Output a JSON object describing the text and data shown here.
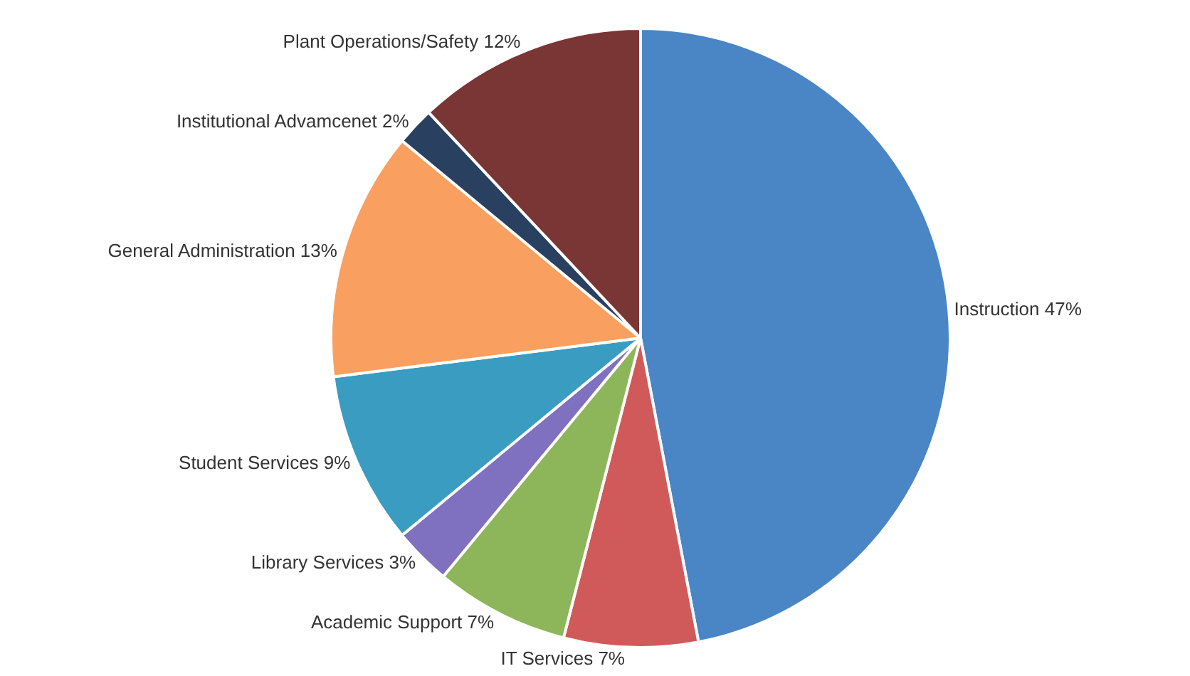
{
  "chart_data": {
    "type": "pie",
    "categories": [
      "Instruction",
      "IT Services",
      "Academic Support",
      "Library Services",
      "Student Services",
      "General Administration",
      "Institutional Advamcenet",
      "Plant Operations/Safety"
    ],
    "values": [
      47,
      7,
      7,
      3,
      9,
      13,
      2,
      12
    ],
    "value_labels": [
      "47%",
      "7%",
      "7%",
      "3%",
      "9%",
      "13%",
      "2%",
      "12%"
    ],
    "colors": [
      "#4a86c5",
      "#d05a5a",
      "#8db55a",
      "#8070c0",
      "#3a9cc0",
      "#f9a060",
      "#2a4060",
      "#7a3535"
    ],
    "legend": false
  }
}
